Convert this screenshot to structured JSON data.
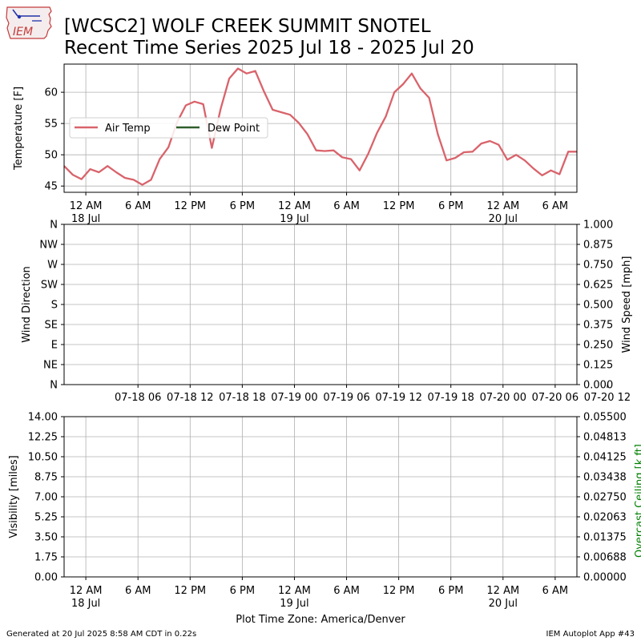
{
  "header": {
    "title_line1": "[WCSC2] WOLF CREEK SUMMIT SNOTEL",
    "title_line2": "Recent Time Series 2025 Jul 18 - 2025 Jul 20",
    "logo_text": "IEM"
  },
  "footer": {
    "generated": "Generated at 20 Jul 2025 8:58 AM CDT in 0.22s",
    "app": "IEM Autoplot App #43"
  },
  "colors": {
    "air_temp": "#d9636b",
    "dew_point": "#2e5e2a",
    "grid": "#b0b0b0",
    "ceiling_label": "#008000"
  },
  "chart_data": [
    {
      "type": "line",
      "name": "temperature",
      "ylabel": "Temperature [F]",
      "ylim": [
        44,
        64.5
      ],
      "yticks": [
        45,
        50,
        55,
        60
      ],
      "xlim_hours": [
        -2.5,
        56.5
      ],
      "time_note": "hours are relative to 2025 Jul 18 00:00 America/Denver",
      "xticks": [
        {
          "h": 0,
          "label": "12 AM",
          "sub": "18 Jul"
        },
        {
          "h": 6,
          "label": "6 AM",
          "sub": ""
        },
        {
          "h": 12,
          "label": "12 PM",
          "sub": ""
        },
        {
          "h": 18,
          "label": "6 PM",
          "sub": ""
        },
        {
          "h": 24,
          "label": "12 AM",
          "sub": "19 Jul"
        },
        {
          "h": 30,
          "label": "6 AM",
          "sub": ""
        },
        {
          "h": 36,
          "label": "12 PM",
          "sub": ""
        },
        {
          "h": 42,
          "label": "6 PM",
          "sub": ""
        },
        {
          "h": 48,
          "label": "12 AM",
          "sub": "20 Jul"
        },
        {
          "h": 54,
          "label": "6 AM",
          "sub": ""
        }
      ],
      "legend": {
        "placement": "upper-left",
        "entries": [
          "Air Temp",
          "Dew Point"
        ]
      },
      "series": [
        {
          "name": "Air Temp",
          "color": "#d9636b",
          "hours": [
            -2.5,
            -1.5,
            -0.5,
            0.5,
            1.5,
            2.5,
            3.5,
            4.5,
            5.5,
            6.5,
            7.5,
            8.5,
            9.5,
            10.5,
            11.5,
            12.5,
            13.5,
            14.5,
            15.5,
            16.5,
            17.5,
            18.5,
            19.5,
            20.5,
            21.5,
            22.5,
            23.5,
            24.5,
            25.5,
            26.5,
            27.5,
            28.5,
            29.5,
            30.5,
            31.5,
            32.5,
            33.5,
            34.5,
            35.5,
            36.5,
            37.5,
            38.5,
            39.5,
            40.5,
            41.5,
            42.5,
            43.5,
            44.5,
            45.5,
            46.5,
            47.5,
            48.5,
            49.5,
            50.5,
            51.5,
            52.5,
            53.5,
            54.5,
            55.5,
            56.5
          ],
          "values": [
            48.2,
            46.8,
            46.1,
            47.7,
            47.2,
            48.2,
            47.2,
            46.3,
            46.0,
            45.2,
            46.0,
            49.3,
            51.2,
            55.2,
            57.9,
            58.5,
            58.1,
            51.1,
            57.3,
            62.2,
            63.8,
            63.0,
            63.4,
            60.1,
            57.2,
            56.8,
            56.4,
            55.1,
            53.3,
            50.7,
            50.6,
            50.7,
            49.6,
            49.3,
            47.5,
            50.2,
            53.5,
            56.1,
            60.0,
            61.3,
            63.0,
            60.6,
            59.1,
            53.3,
            49.1,
            49.5,
            50.4,
            50.5,
            51.8,
            52.2,
            51.6,
            49.2,
            50.0,
            49.1,
            47.8,
            46.7,
            47.5,
            46.9,
            50.5,
            50.5
          ]
        },
        {
          "name": "Dew Point",
          "color": "#2e5e2a",
          "hours": [],
          "values": []
        }
      ]
    },
    {
      "type": "scatter",
      "name": "wind",
      "ylabel": "Wind Direction",
      "ylabel_right": "Wind Speed [mph]",
      "ylim": [
        0,
        360
      ],
      "yticks_left": [
        "N",
        "NE",
        "E",
        "SE",
        "S",
        "SW",
        "W",
        "NW",
        "N"
      ],
      "ylim_right": [
        0,
        1
      ],
      "yticks_right": [
        "0.000",
        "0.125",
        "0.250",
        "0.375",
        "0.500",
        "0.625",
        "0.750",
        "0.875",
        "1.000"
      ],
      "xticks": [
        "07-18 06",
        "07-18 12",
        "07-18 18",
        "07-19 00",
        "07-19 06",
        "07-19 12",
        "07-19 18",
        "07-20 00",
        "07-20 06",
        "07-20 12"
      ],
      "series": []
    },
    {
      "type": "line",
      "name": "visibility",
      "ylabel": "Visibility [miles]",
      "ylabel_right": "Overcast Ceiling [k ft]",
      "ylim": [
        0,
        14
      ],
      "yticks_left": [
        "0.00",
        "1.75",
        "3.50",
        "5.25",
        "7.00",
        "8.75",
        "10.50",
        "12.25",
        "14.00"
      ],
      "ylim_right": [
        0,
        0.055
      ],
      "yticks_right": [
        "0.00000",
        "0.00688",
        "0.01375",
        "0.02063",
        "0.02750",
        "0.03438",
        "0.04125",
        "0.04813",
        "0.05500"
      ],
      "xlabel": "Plot Time Zone: America/Denver",
      "xticks": [
        {
          "h": 0,
          "label": "12 AM",
          "sub": "18 Jul"
        },
        {
          "h": 6,
          "label": "6 AM",
          "sub": ""
        },
        {
          "h": 12,
          "label": "12 PM",
          "sub": ""
        },
        {
          "h": 18,
          "label": "6 PM",
          "sub": ""
        },
        {
          "h": 24,
          "label": "12 AM",
          "sub": "19 Jul"
        },
        {
          "h": 30,
          "label": "6 AM",
          "sub": ""
        },
        {
          "h": 36,
          "label": "12 PM",
          "sub": ""
        },
        {
          "h": 42,
          "label": "6 PM",
          "sub": ""
        },
        {
          "h": 48,
          "label": "12 AM",
          "sub": "20 Jul"
        },
        {
          "h": 54,
          "label": "6 AM",
          "sub": ""
        }
      ],
      "series": []
    }
  ]
}
